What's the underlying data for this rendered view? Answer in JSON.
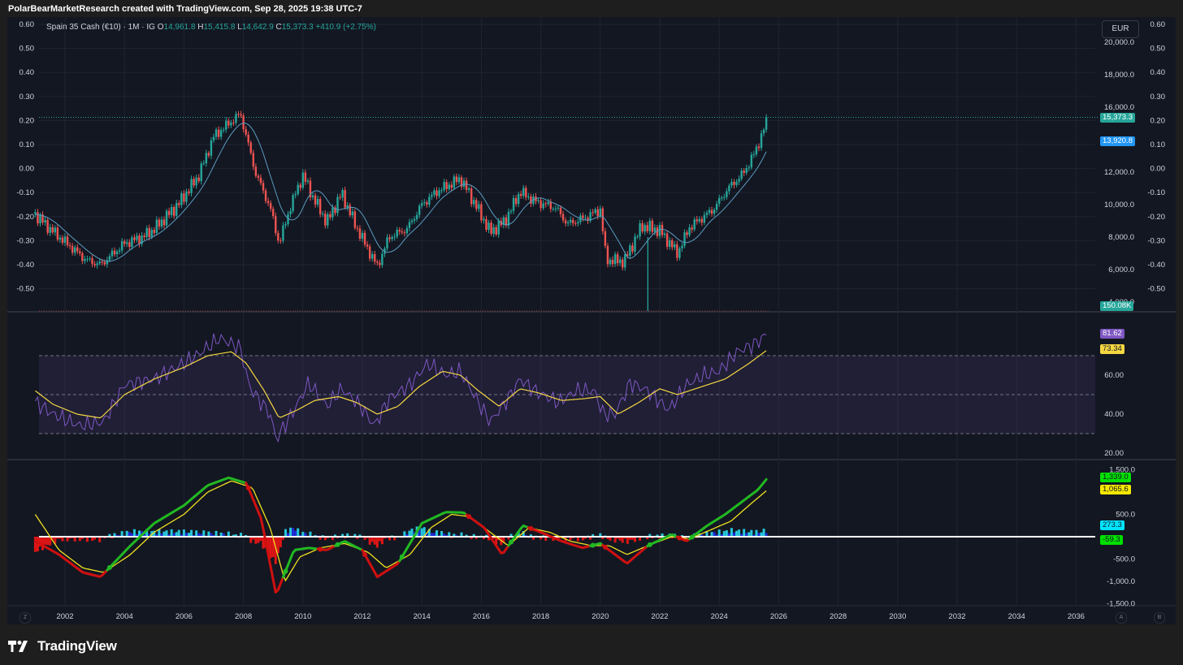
{
  "header": {
    "attribution": "PolarBearMarketResearch created with TradingView.com, Sep 28, 2025 19:38 UTC-7"
  },
  "legend": {
    "symbol": "Spain 35 Cash (€10) · 1M · IG",
    "o_label": "O",
    "o": "14,961.8",
    "h_label": "H",
    "h": "15,415.8",
    "l_label": "L",
    "l": "14,642.9",
    "c_label": "C",
    "c": "15,373.3",
    "change": "+410.9 (+2.75%)"
  },
  "currency_button": "EUR",
  "footer": {
    "brand": "TradingView"
  },
  "corner_buttons": {
    "left": "Z",
    "a": "A",
    "b": "B"
  },
  "colors": {
    "background": "#131722",
    "up": "#26a69a",
    "down": "#ef5350",
    "ma": "#5b9cc0",
    "rsi": "#7e57c2",
    "rsi_ma": "#f5d742",
    "macd_fast_up": "#22b822",
    "macd_fast_down": "#d01010",
    "macd_signal": "#f0e020",
    "hist_cyan": "#26c6da",
    "hist_blue": "#1f2ad9",
    "hist_red": "#e01515"
  },
  "chart_data": [
    {
      "type": "candlestick",
      "title": "Spain 35 Cash (€10) · 1M · IG",
      "x_ticks": [
        "2002",
        "2004",
        "2006",
        "2008",
        "2010",
        "2012",
        "2014",
        "2016",
        "2018",
        "2020",
        "2022",
        "2024",
        "2026",
        "2028",
        "2030",
        "2032",
        "2034",
        "2036"
      ],
      "right_axis_ticks": [
        "20,000.0",
        "18,000.0",
        "16,000.0",
        "12,000.0",
        "10,000.0",
        "8,000.0",
        "6,000.0",
        "4,000.0"
      ],
      "left_axis_ticks": [
        "0.60",
        "0.50",
        "0.40",
        "0.30",
        "0.20",
        "0.10",
        "0.00",
        "-0.10",
        "-0.20",
        "-0.30",
        "-0.40",
        "-0.50"
      ],
      "mirror_axis_ticks": [
        "0.60",
        "0.50",
        "0.40",
        "0.30",
        "0.20",
        "0.10",
        "0.00",
        "-0.10",
        "-0.20",
        "-0.30",
        "-0.40",
        "-0.50"
      ],
      "price_path": [
        [
          2001.0,
          9400
        ],
        [
          2001.5,
          8500
        ],
        [
          2002.0,
          7700
        ],
        [
          2002.7,
          6600
        ],
        [
          2003.2,
          6300
        ],
        [
          2004.0,
          7600
        ],
        [
          2004.6,
          8000
        ],
        [
          2005.0,
          8500
        ],
        [
          2005.8,
          10000
        ],
        [
          2006.5,
          11800
        ],
        [
          2007.0,
          14200
        ],
        [
          2007.9,
          15600
        ],
        [
          2008.4,
          12000
        ],
        [
          2008.9,
          9800
        ],
        [
          2009.2,
          7600
        ],
        [
          2009.6,
          10000
        ],
        [
          2010.0,
          11800
        ],
        [
          2010.3,
          10600
        ],
        [
          2010.8,
          8900
        ],
        [
          2011.3,
          10700
        ],
        [
          2011.8,
          8600
        ],
        [
          2012.2,
          7200
        ],
        [
          2012.5,
          6200
        ],
        [
          2012.9,
          8000
        ],
        [
          2013.5,
          8500
        ],
        [
          2014.0,
          10000
        ],
        [
          2014.5,
          10800
        ],
        [
          2015.3,
          11600
        ],
        [
          2015.8,
          10000
        ],
        [
          2016.3,
          8300
        ],
        [
          2016.8,
          9000
        ],
        [
          2017.3,
          10800
        ],
        [
          2017.8,
          10200
        ],
        [
          2018.5,
          9800
        ],
        [
          2018.9,
          8800
        ],
        [
          2019.5,
          9200
        ],
        [
          2020.0,
          9700
        ],
        [
          2020.2,
          6600
        ],
        [
          2020.8,
          6500
        ],
        [
          2021.4,
          8700
        ],
        [
          2022.0,
          8400
        ],
        [
          2022.6,
          7000
        ],
        [
          2023.0,
          8600
        ],
        [
          2023.8,
          9700
        ],
        [
          2024.3,
          11000
        ],
        [
          2024.8,
          11900
        ],
        [
          2025.2,
          13200
        ],
        [
          2025.65,
          15373.3
        ]
      ],
      "last_price": 15373.3,
      "ma_last": 13920.8,
      "volume_last": "150.08K",
      "volume_spike": {
        "x": 2021.6,
        "note": "single vertical volume bar"
      }
    },
    {
      "type": "line",
      "title": "RSI",
      "y_ticks": [
        "60.00",
        "40.00",
        "20.00"
      ],
      "bands": [
        30,
        50,
        70
      ],
      "series": [
        {
          "role": "rsi",
          "path": [
            [
              2001.0,
              46
            ],
            [
              2001.6,
              40
            ],
            [
              2002.5,
              34
            ],
            [
              2003.3,
              36
            ],
            [
              2004.0,
              55
            ],
            [
              2005.0,
              58
            ],
            [
              2006.0,
              66
            ],
            [
              2006.6,
              72
            ],
            [
              2007.2,
              79
            ],
            [
              2007.9,
              74
            ],
            [
              2008.2,
              54
            ],
            [
              2008.9,
              40
            ],
            [
              2009.1,
              27
            ],
            [
              2009.7,
              42
            ],
            [
              2010.2,
              56
            ],
            [
              2010.8,
              44
            ],
            [
              2011.3,
              53
            ],
            [
              2011.9,
              45
            ],
            [
              2012.4,
              34
            ],
            [
              2012.9,
              48
            ],
            [
              2013.6,
              55
            ],
            [
              2014.2,
              66
            ],
            [
              2014.8,
              60
            ],
            [
              2015.3,
              62
            ],
            [
              2015.9,
              46
            ],
            [
              2016.3,
              36
            ],
            [
              2016.9,
              48
            ],
            [
              2017.3,
              58
            ],
            [
              2017.8,
              52
            ],
            [
              2018.6,
              46
            ],
            [
              2019.2,
              52
            ],
            [
              2019.8,
              52
            ],
            [
              2020.1,
              40
            ],
            [
              2020.5,
              40
            ],
            [
              2021.0,
              56
            ],
            [
              2021.6,
              52
            ],
            [
              2022.3,
              42
            ],
            [
              2022.9,
              55
            ],
            [
              2023.5,
              60
            ],
            [
              2024.0,
              62
            ],
            [
              2024.6,
              72
            ],
            [
              2025.2,
              76
            ],
            [
              2025.65,
              81.62
            ]
          ]
        },
        {
          "role": "rsi_ma",
          "path": [
            [
              2001.0,
              52
            ],
            [
              2001.6,
              45
            ],
            [
              2002.4,
              40
            ],
            [
              2003.2,
              38
            ],
            [
              2004.0,
              50
            ],
            [
              2005.0,
              58
            ],
            [
              2006.0,
              64
            ],
            [
              2006.8,
              70
            ],
            [
              2007.6,
              72
            ],
            [
              2008.1,
              66
            ],
            [
              2008.7,
              52
            ],
            [
              2009.2,
              38
            ],
            [
              2009.8,
              42
            ],
            [
              2010.4,
              47
            ],
            [
              2011.2,
              49
            ],
            [
              2011.8,
              46
            ],
            [
              2012.5,
              40
            ],
            [
              2013.2,
              44
            ],
            [
              2013.9,
              54
            ],
            [
              2014.7,
              62
            ],
            [
              2015.3,
              60
            ],
            [
              2015.9,
              52
            ],
            [
              2016.6,
              44
            ],
            [
              2017.3,
              53
            ],
            [
              2017.9,
              51
            ],
            [
              2018.7,
              47
            ],
            [
              2019.5,
              48
            ],
            [
              2020.0,
              49
            ],
            [
              2020.6,
              40
            ],
            [
              2021.3,
              46
            ],
            [
              2022.0,
              53
            ],
            [
              2022.6,
              50
            ],
            [
              2023.4,
              54
            ],
            [
              2024.2,
              58
            ],
            [
              2025.0,
              66
            ],
            [
              2025.65,
              73.34
            ]
          ]
        }
      ],
      "last_values": {
        "rsi": 81.62,
        "rsi_ma": 73.34
      }
    },
    {
      "type": "line",
      "title": "MACD",
      "y_ticks": [
        "1,500.0",
        "500.0",
        "-500.0",
        "-1,000.0",
        "-1,500.0"
      ],
      "series": [
        {
          "role": "macd",
          "path": [
            [
              2001.0,
              -100
            ],
            [
              2001.8,
              -400
            ],
            [
              2002.6,
              -800
            ],
            [
              2003.2,
              -900
            ],
            [
              2004.2,
              -200
            ],
            [
              2005.0,
              300
            ],
            [
              2006.0,
              700
            ],
            [
              2006.8,
              1150
            ],
            [
              2007.5,
              1320
            ],
            [
              2008.1,
              1200
            ],
            [
              2008.6,
              400
            ],
            [
              2009.1,
              -1300
            ],
            [
              2009.7,
              -300
            ],
            [
              2010.2,
              -250
            ],
            [
              2010.8,
              -300
            ],
            [
              2011.4,
              -100
            ],
            [
              2012.0,
              -300
            ],
            [
              2012.5,
              -900
            ],
            [
              2013.2,
              -600
            ],
            [
              2014.0,
              300
            ],
            [
              2014.8,
              550
            ],
            [
              2015.4,
              540
            ],
            [
              2016.1,
              200
            ],
            [
              2016.7,
              -400
            ],
            [
              2017.4,
              250
            ],
            [
              2018.0,
              100
            ],
            [
              2018.7,
              -100
            ],
            [
              2019.4,
              -250
            ],
            [
              2020.0,
              -150
            ],
            [
              2020.9,
              -600
            ],
            [
              2021.6,
              -200
            ],
            [
              2022.4,
              50
            ],
            [
              2022.9,
              -100
            ],
            [
              2023.6,
              250
            ],
            [
              2024.2,
              500
            ],
            [
              2024.8,
              800
            ],
            [
              2025.3,
              1050
            ],
            [
              2025.65,
              1339.0
            ]
          ]
        },
        {
          "role": "signal",
          "path": [
            [
              2001.0,
              500
            ],
            [
              2001.8,
              -300
            ],
            [
              2002.6,
              -700
            ],
            [
              2003.3,
              -800
            ],
            [
              2004.2,
              -400
            ],
            [
              2005.0,
              100
            ],
            [
              2006.0,
              500
            ],
            [
              2006.8,
              1000
            ],
            [
              2007.6,
              1250
            ],
            [
              2008.3,
              1100
            ],
            [
              2008.9,
              200
            ],
            [
              2009.4,
              -1000
            ],
            [
              2009.9,
              -450
            ],
            [
              2010.6,
              -250
            ],
            [
              2011.4,
              -150
            ],
            [
              2012.2,
              -350
            ],
            [
              2012.8,
              -700
            ],
            [
              2013.6,
              -400
            ],
            [
              2014.3,
              200
            ],
            [
              2015.0,
              500
            ],
            [
              2015.6,
              450
            ],
            [
              2016.3,
              100
            ],
            [
              2016.9,
              -200
            ],
            [
              2017.6,
              200
            ],
            [
              2018.3,
              100
            ],
            [
              2019.0,
              -100
            ],
            [
              2019.7,
              -200
            ],
            [
              2020.3,
              -200
            ],
            [
              2020.9,
              -400
            ],
            [
              2021.6,
              -200
            ],
            [
              2022.4,
              0
            ],
            [
              2023.0,
              -50
            ],
            [
              2023.7,
              150
            ],
            [
              2024.4,
              350
            ],
            [
              2025.0,
              700
            ],
            [
              2025.65,
              1065.6
            ]
          ]
        }
      ],
      "last_values": {
        "macd": 1339.0,
        "signal": 1065.6,
        "histogram": 273.3,
        "fourth": -59.3
      }
    }
  ],
  "price_tags": {
    "last": "15,373.3",
    "ma": "13,920.8",
    "volume": "150.08K",
    "rsi": "81.62",
    "rsi_ma": "73.34",
    "macd": "1,339.0",
    "signal": "1,065.6",
    "hist": "273.3",
    "zero": "-59.3"
  }
}
